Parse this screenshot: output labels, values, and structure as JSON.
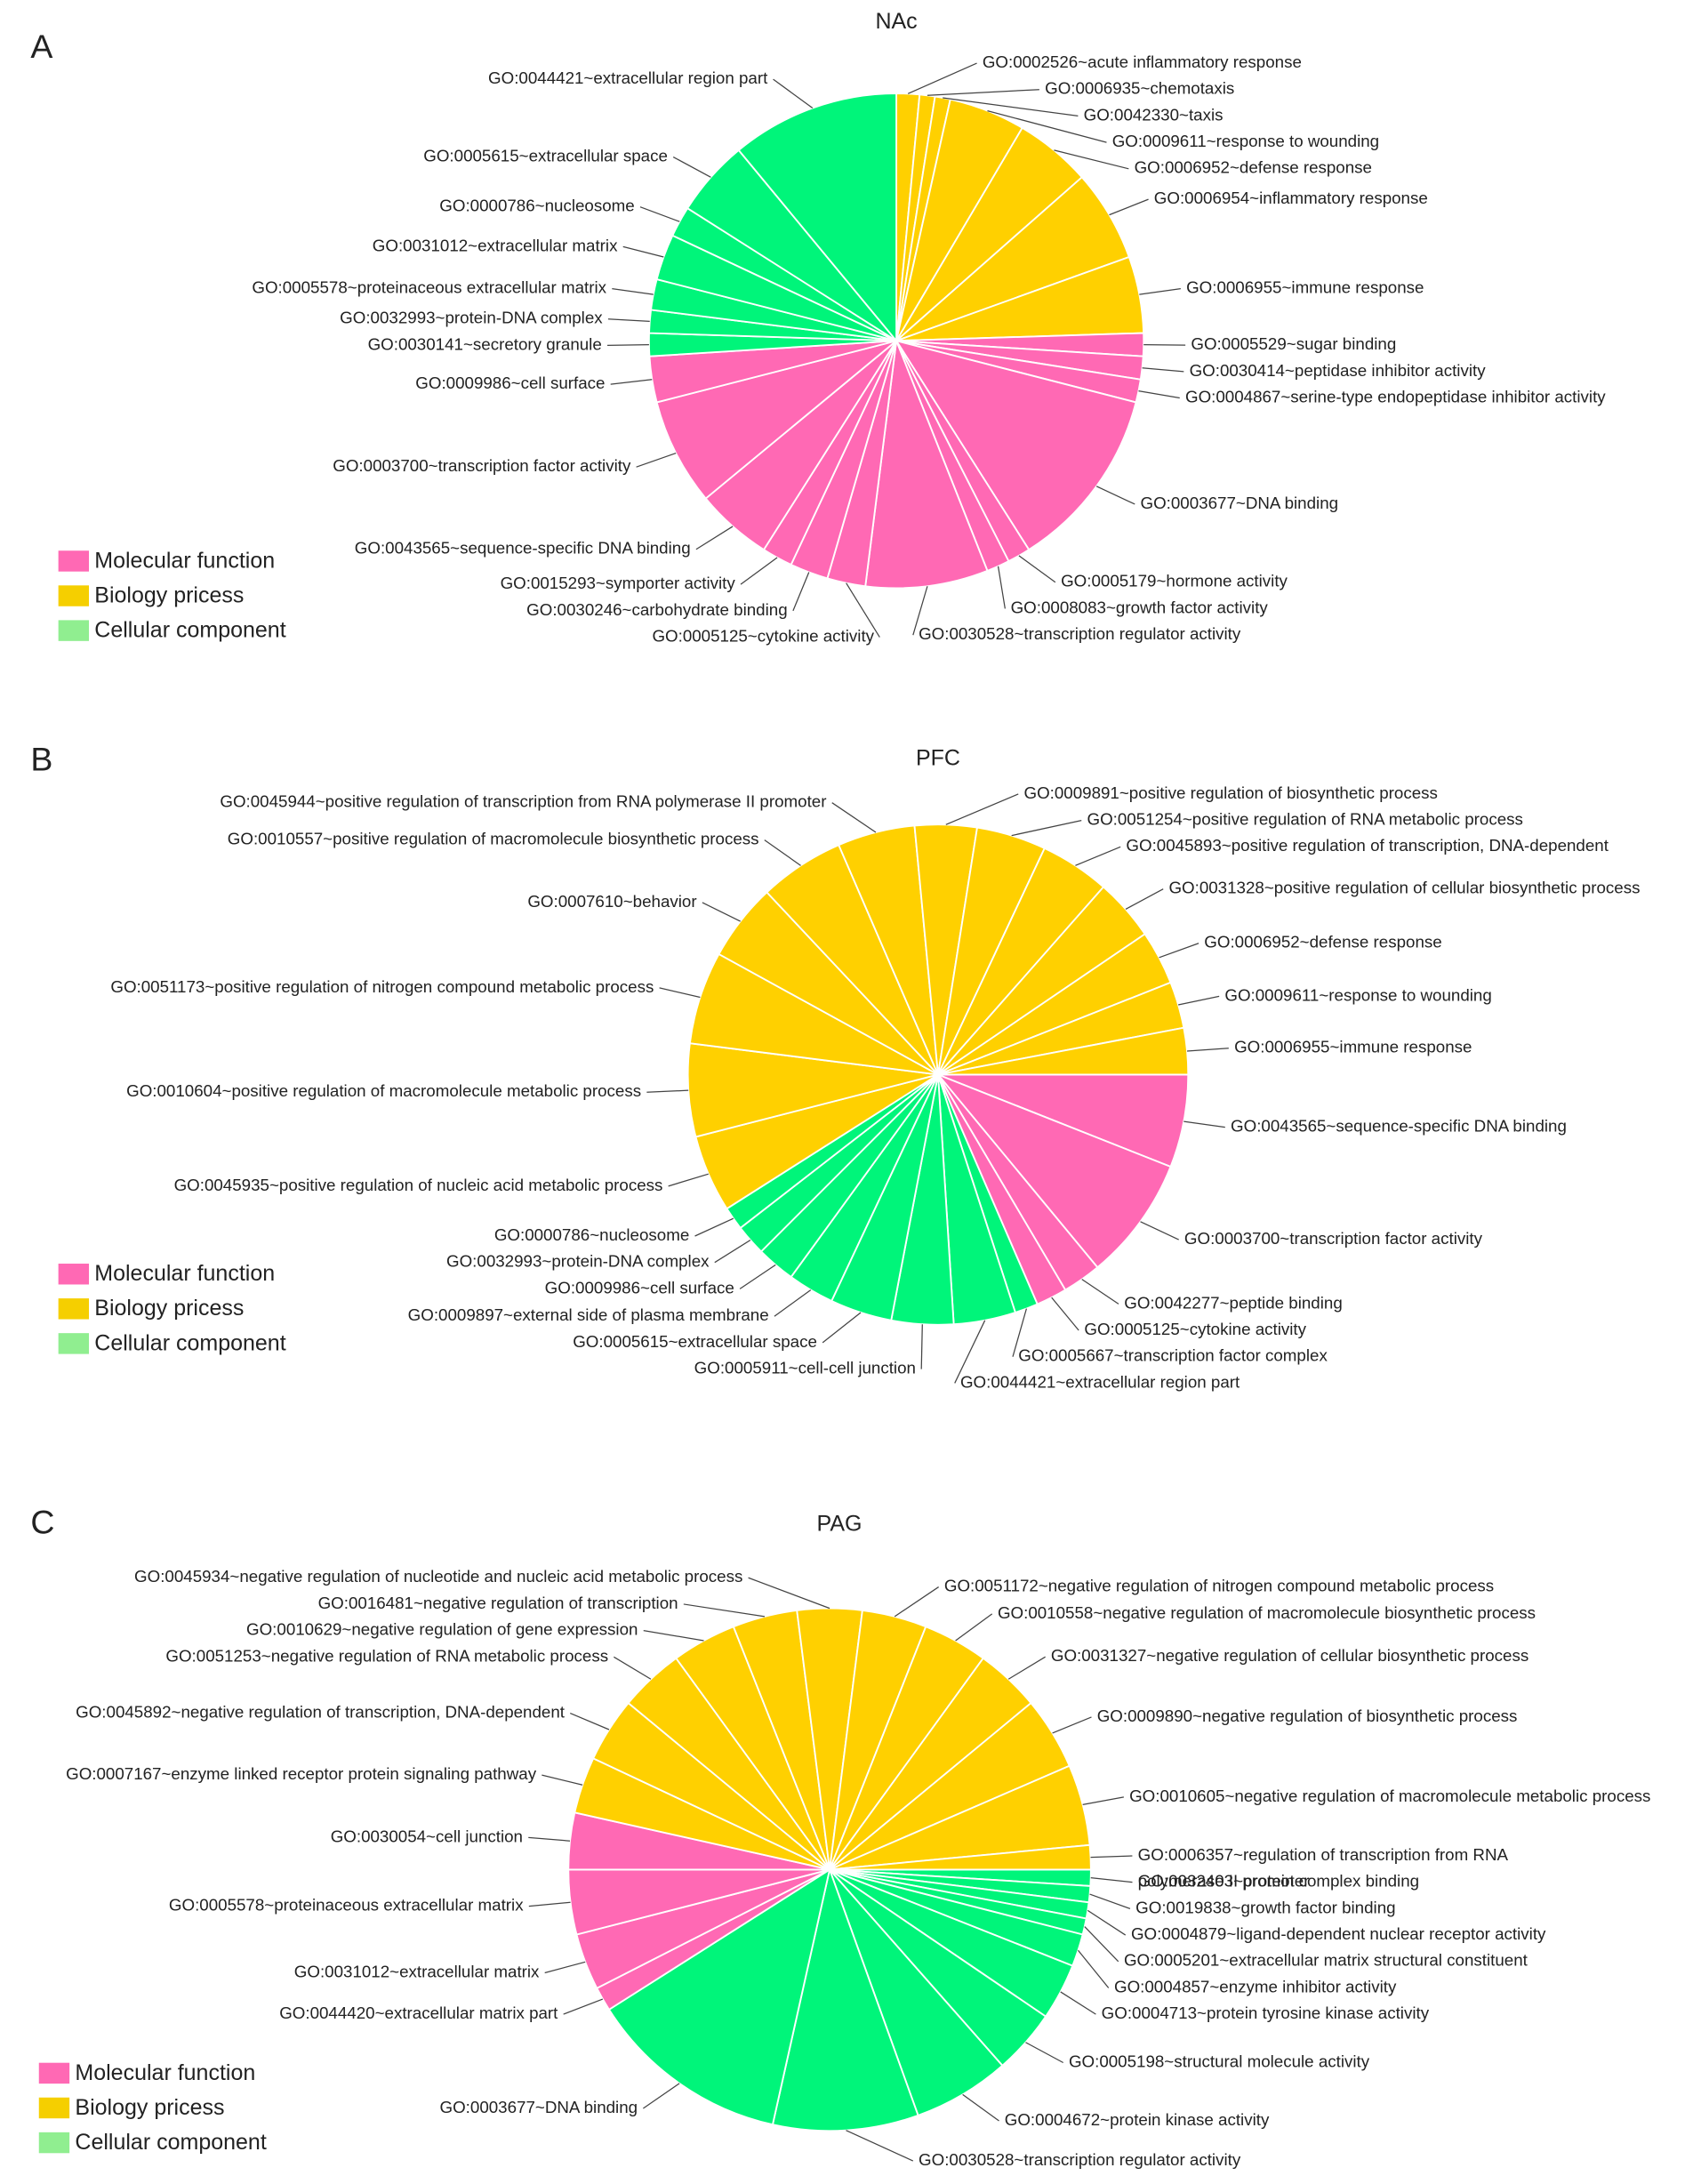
{
  "chart_data": [
    {
      "type": "pie",
      "panel_label": "A",
      "title": "NAc",
      "categories": [
        "GO:0002526~acute inflammatory response",
        "GO:0006935~chemotaxis",
        "GO:0042330~taxis",
        "GO:0009611~response to wounding",
        "GO:0006952~defense response",
        "GO:0006954~inflammatory response",
        "GO:0006955~immune response",
        "GO:0005529~sugar binding",
        "GO:0030414~peptidase inhibitor activity",
        "GO:0004867~serine-type endopeptidase inhibitor activity",
        "GO:0003677~DNA binding",
        "GO:0005179~hormone activity",
        "GO:0008083~growth factor activity",
        "GO:0030528~transcription regulator activity",
        "GO:0005125~cytokine activity",
        "GO:0030246~carbohydrate binding",
        "GO:0015293~symporter activity",
        "GO:0043565~sequence-specific DNA binding",
        "GO:0003700~transcription factor activity",
        "GO:0009986~cell surface",
        "GO:0030141~secretory granule",
        "GO:0032993~protein-DNA complex",
        "GO:0005578~proteinaceous extracellular matrix",
        "GO:0031012~extracellular matrix",
        "GO:0000786~nucleosome",
        "GO:0005615~extracellular space",
        "GO:0044421~extracellular region part"
      ],
      "values": [
        1.5,
        1,
        1,
        5,
        5,
        6,
        5,
        1.5,
        1.5,
        1.5,
        12,
        1.5,
        1.5,
        8,
        2.5,
        2.5,
        2,
        5,
        7,
        3,
        1.5,
        1.5,
        2,
        3,
        2,
        5,
        11
      ],
      "colors": [
        "#ffd000",
        "#ffd000",
        "#ffd000",
        "#ffd000",
        "#ffd000",
        "#ffd000",
        "#ffd000",
        "#ff69b4",
        "#ff69b4",
        "#ff69b4",
        "#ff69b4",
        "#ff69b4",
        "#ff69b4",
        "#ff69b4",
        "#ff69b4",
        "#ff69b4",
        "#ff69b4",
        "#ff69b4",
        "#ff69b4",
        "#ff69b4",
        "#00f57a",
        "#00f57a",
        "#00f57a",
        "#00f57a",
        "#00f57a",
        "#00f57a",
        "#00f57a"
      ],
      "legend": [
        {
          "name": "Molecular function",
          "color": "#ff69b4"
        },
        {
          "name": "Biology pricess",
          "color": "#f5cf00"
        },
        {
          "name": "Cellular component",
          "color": "#90ee90"
        }
      ]
    },
    {
      "type": "pie",
      "panel_label": "B",
      "title": "PFC",
      "categories": [
        "GO:0043565~sequence-specific DNA binding",
        "GO:0003700~transcription factor activity",
        "GO:0042277~peptide binding",
        "GO:0005125~cytokine activity",
        "GO:0005667~transcription factor complex",
        "GO:0044421~extracellular region part",
        "GO:0005911~cell-cell junction",
        "GO:0005615~extracellular space",
        "GO:0009897~external side of plasma membrane",
        "GO:0009986~cell surface",
        "GO:0032993~protein-DNA complex",
        "GO:0000786~nucleosome",
        "GO:0045935~positive regulation of nucleic acid metabolic process",
        "GO:0010604~positive regulation of macromolecule metabolic process",
        "GO:0051173~positive regulation of nitrogen compound metabolic process",
        "GO:0007610~behavior",
        "GO:0010557~positive regulation of macromolecule biosynthetic process",
        "GO:0045944~positive regulation of transcription from RNA polymerase II promoter",
        "GO:0009891~positive regulation of biosynthetic process",
        "GO:0051254~positive regulation of RNA metabolic process",
        "GO:0045893~positive regulation of transcription, DNA-dependent",
        "GO:0031328~positive regulation of cellular biosynthetic process",
        "GO:0006952~defense response",
        "GO:0009611~response to wounding",
        "GO:0006955~immune response"
      ],
      "values": [
        6,
        8,
        2.5,
        2,
        1.5,
        4,
        4,
        4,
        3,
        2.5,
        2,
        1.5,
        5,
        6,
        6,
        5,
        5.5,
        5,
        4,
        4.5,
        4.5,
        4,
        3.5,
        3,
        3
      ],
      "colors": [
        "#ff69b4",
        "#ff69b4",
        "#ff69b4",
        "#ff69b4",
        "#00f57a",
        "#00f57a",
        "#00f57a",
        "#00f57a",
        "#00f57a",
        "#00f57a",
        "#00f57a",
        "#00f57a",
        "#ffd000",
        "#ffd000",
        "#ffd000",
        "#ffd000",
        "#ffd000",
        "#ffd000",
        "#ffd000",
        "#ffd000",
        "#ffd000",
        "#ffd000",
        "#ffd000",
        "#ffd000",
        "#ffd000"
      ],
      "legend": [
        {
          "name": "Molecular function",
          "color": "#ff69b4"
        },
        {
          "name": "Biology pricess",
          "color": "#f5cf00"
        },
        {
          "name": "Cellular component",
          "color": "#90ee90"
        }
      ]
    },
    {
      "type": "pie",
      "panel_label": "C",
      "title": "PAG",
      "categories": [
        "GO:0032403~protein complex binding",
        "GO:0019838~growth factor binding",
        "GO:0004879~ligand-dependent nuclear receptor activity",
        "GO:0005201~extracellular matrix structural constituent",
        "GO:0004857~enzyme inhibitor activity",
        "GO:0004713~protein tyrosine kinase activity",
        "GO:0005198~structural molecule activity",
        "GO:0004672~protein kinase activity",
        "GO:0030528~transcription regulator activity",
        "GO:0003677~DNA binding",
        "GO:0044420~extracellular matrix part",
        "GO:0031012~extracellular matrix",
        "GO:0005578~proteinaceous extracellular matrix",
        "GO:0030054~cell junction",
        "GO:0007167~enzyme linked receptor protein signaling pathway",
        "GO:0045892~negative regulation of transcription, DNA-dependent",
        "GO:0051253~negative regulation of RNA metabolic process",
        "GO:0010629~negative regulation of gene expression",
        "GO:0016481~negative regulation of transcription",
        "GO:0045934~negative regulation of nucleotide and nucleic acid metabolic process",
        "GO:0051172~negative regulation of nitrogen compound metabolic process",
        "GO:0010558~negative regulation of macromolecule biosynthetic process",
        "GO:0031327~negative regulation of cellular biosynthetic process",
        "GO:0009890~negative regulation of biosynthetic process",
        "GO:0010605~negative regulation of macromolecule metabolic process",
        "GO:0006357~regulation of transcription from RNA\npolymerase II promoter"
      ],
      "values": [
        1,
        1,
        1,
        1,
        2,
        3.5,
        4,
        6,
        9,
        12.5,
        1.5,
        3.5,
        4,
        3.5,
        3.5,
        4,
        4,
        4,
        4,
        4,
        4,
        4,
        4,
        4.5,
        5,
        1.5
      ],
      "colors": [
        "#00f57a",
        "#00f57a",
        "#00f57a",
        "#00f57a",
        "#00f57a",
        "#00f57a",
        "#00f57a",
        "#00f57a",
        "#00f57a",
        "#00f57a",
        "#ff69b4",
        "#ff69b4",
        "#ff69b4",
        "#ff69b4",
        "#ffd000",
        "#ffd000",
        "#ffd000",
        "#ffd000",
        "#ffd000",
        "#ffd000",
        "#ffd000",
        "#ffd000",
        "#ffd000",
        "#ffd000",
        "#ffd000",
        "#ffd000"
      ],
      "legend": [
        {
          "name": "Molecular function",
          "color": "#ff69b4"
        },
        {
          "name": "Biology pricess",
          "color": "#f5cf00"
        },
        {
          "name": "Cellular component",
          "color": "#90ee90"
        }
      ]
    }
  ]
}
